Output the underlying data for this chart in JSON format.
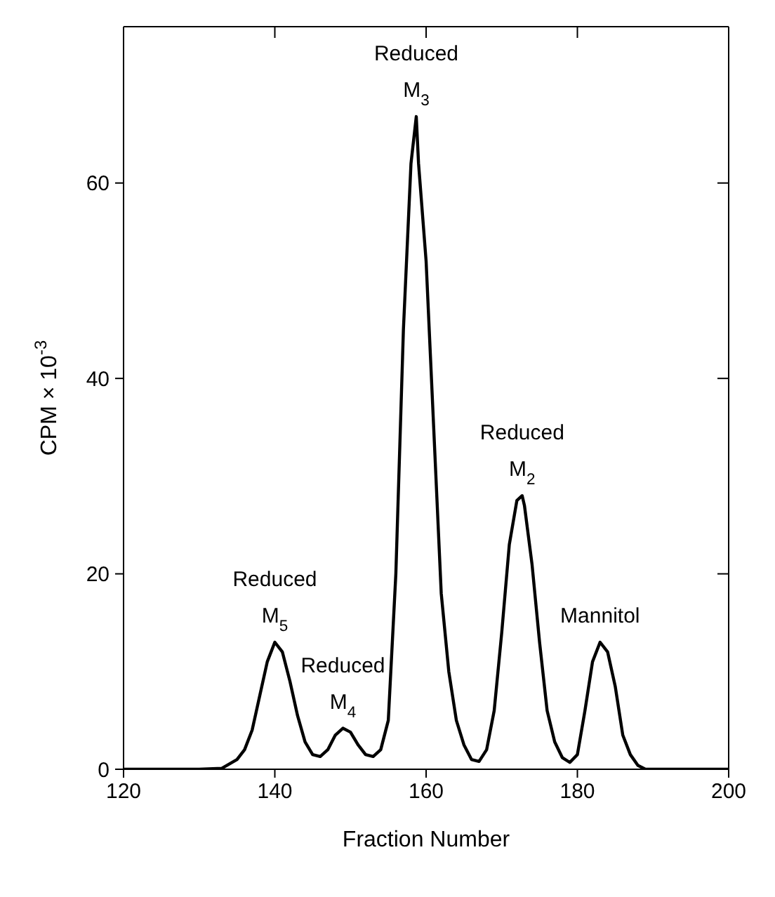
{
  "chart_data": {
    "type": "line",
    "xlabel": "Fraction Number",
    "ylabel": "CPM × 10$^{-3}$",
    "x": [
      120,
      130,
      133,
      135,
      136,
      137,
      138,
      139,
      140,
      141,
      142,
      143,
      144,
      145,
      146,
      147,
      148,
      149,
      150,
      151,
      152,
      153,
      154,
      155,
      156,
      157,
      158,
      158.7,
      159,
      160,
      161,
      162,
      163,
      164,
      165,
      166,
      167,
      168,
      169,
      170,
      171,
      172,
      172.7,
      173,
      174,
      175,
      176,
      177,
      178,
      179,
      180,
      181,
      182,
      183,
      184,
      185,
      186,
      187,
      188,
      189,
      200
    ],
    "series": [
      {
        "color": "#000000",
        "values": [
          0,
          0,
          0.1,
          1,
          2,
          4,
          7.5,
          11,
          13,
          12,
          9,
          5.5,
          2.8,
          1.5,
          1.3,
          2,
          3.5,
          4.2,
          3.8,
          2.5,
          1.5,
          1.3,
          2,
          5,
          20,
          45,
          62,
          66.8,
          62,
          52,
          35,
          18,
          10,
          5,
          2.5,
          1,
          0.8,
          2,
          6,
          14,
          23,
          27.5,
          28,
          27,
          21,
          13,
          6,
          2.8,
          1.2,
          0.7,
          1.5,
          6,
          11,
          13,
          12,
          8.5,
          3.5,
          1.5,
          0.4,
          0,
          0
        ]
      }
    ],
    "xlim": [
      120,
      200
    ],
    "xticks": [
      120,
      140,
      160,
      180,
      200
    ],
    "ylim": [
      0,
      76
    ],
    "yticks": [
      0,
      20,
      40,
      60
    ],
    "marker": "none",
    "line_style": "solid",
    "annotations": [
      {
        "text": "Reduced M$_{3}$",
        "x": 158.7,
        "y": 66.8
      },
      {
        "text": "Reduced M$_{2}$",
        "x": 172.7,
        "y": 28
      },
      {
        "text": "Reduced M$_{5}$",
        "x": 140,
        "y": 13
      },
      {
        "text": "Reduced M$_{4}$",
        "x": 149,
        "y": 4.2
      },
      {
        "text": "Mannitol",
        "x": 183,
        "y": 13
      }
    ]
  }
}
